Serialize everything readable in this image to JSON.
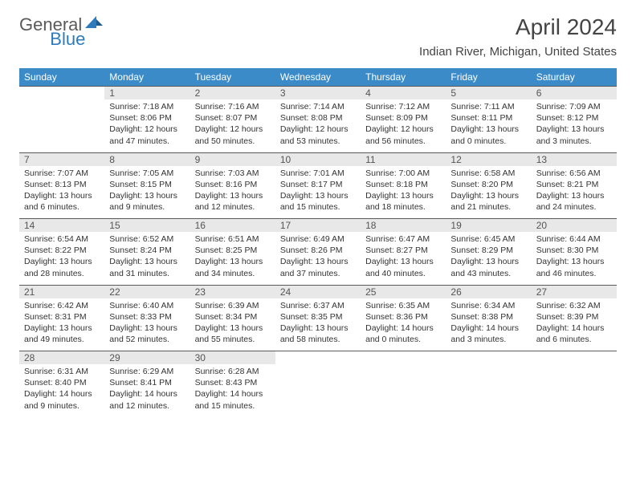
{
  "logo": {
    "general": "General",
    "blue": "Blue"
  },
  "title": "April 2024",
  "location": "Indian River, Michigan, United States",
  "colors": {
    "header_bg": "#3b8bc9",
    "daynum_bg": "#e8e8e8",
    "border": "#5a5a5a",
    "text": "#333333",
    "title_text": "#444444"
  },
  "weekdays": [
    "Sunday",
    "Monday",
    "Tuesday",
    "Wednesday",
    "Thursday",
    "Friday",
    "Saturday"
  ],
  "weeks": [
    {
      "nums": [
        "",
        "1",
        "2",
        "3",
        "4",
        "5",
        "6"
      ],
      "cells": [
        null,
        {
          "sr": "7:18 AM",
          "ss": "8:06 PM",
          "dl": "12 hours and 47 minutes."
        },
        {
          "sr": "7:16 AM",
          "ss": "8:07 PM",
          "dl": "12 hours and 50 minutes."
        },
        {
          "sr": "7:14 AM",
          "ss": "8:08 PM",
          "dl": "12 hours and 53 minutes."
        },
        {
          "sr": "7:12 AM",
          "ss": "8:09 PM",
          "dl": "12 hours and 56 minutes."
        },
        {
          "sr": "7:11 AM",
          "ss": "8:11 PM",
          "dl": "13 hours and 0 minutes."
        },
        {
          "sr": "7:09 AM",
          "ss": "8:12 PM",
          "dl": "13 hours and 3 minutes."
        }
      ]
    },
    {
      "nums": [
        "7",
        "8",
        "9",
        "10",
        "11",
        "12",
        "13"
      ],
      "cells": [
        {
          "sr": "7:07 AM",
          "ss": "8:13 PM",
          "dl": "13 hours and 6 minutes."
        },
        {
          "sr": "7:05 AM",
          "ss": "8:15 PM",
          "dl": "13 hours and 9 minutes."
        },
        {
          "sr": "7:03 AM",
          "ss": "8:16 PM",
          "dl": "13 hours and 12 minutes."
        },
        {
          "sr": "7:01 AM",
          "ss": "8:17 PM",
          "dl": "13 hours and 15 minutes."
        },
        {
          "sr": "7:00 AM",
          "ss": "8:18 PM",
          "dl": "13 hours and 18 minutes."
        },
        {
          "sr": "6:58 AM",
          "ss": "8:20 PM",
          "dl": "13 hours and 21 minutes."
        },
        {
          "sr": "6:56 AM",
          "ss": "8:21 PM",
          "dl": "13 hours and 24 minutes."
        }
      ]
    },
    {
      "nums": [
        "14",
        "15",
        "16",
        "17",
        "18",
        "19",
        "20"
      ],
      "cells": [
        {
          "sr": "6:54 AM",
          "ss": "8:22 PM",
          "dl": "13 hours and 28 minutes."
        },
        {
          "sr": "6:52 AM",
          "ss": "8:24 PM",
          "dl": "13 hours and 31 minutes."
        },
        {
          "sr": "6:51 AM",
          "ss": "8:25 PM",
          "dl": "13 hours and 34 minutes."
        },
        {
          "sr": "6:49 AM",
          "ss": "8:26 PM",
          "dl": "13 hours and 37 minutes."
        },
        {
          "sr": "6:47 AM",
          "ss": "8:27 PM",
          "dl": "13 hours and 40 minutes."
        },
        {
          "sr": "6:45 AM",
          "ss": "8:29 PM",
          "dl": "13 hours and 43 minutes."
        },
        {
          "sr": "6:44 AM",
          "ss": "8:30 PM",
          "dl": "13 hours and 46 minutes."
        }
      ]
    },
    {
      "nums": [
        "21",
        "22",
        "23",
        "24",
        "25",
        "26",
        "27"
      ],
      "cells": [
        {
          "sr": "6:42 AM",
          "ss": "8:31 PM",
          "dl": "13 hours and 49 minutes."
        },
        {
          "sr": "6:40 AM",
          "ss": "8:33 PM",
          "dl": "13 hours and 52 minutes."
        },
        {
          "sr": "6:39 AM",
          "ss": "8:34 PM",
          "dl": "13 hours and 55 minutes."
        },
        {
          "sr": "6:37 AM",
          "ss": "8:35 PM",
          "dl": "13 hours and 58 minutes."
        },
        {
          "sr": "6:35 AM",
          "ss": "8:36 PM",
          "dl": "14 hours and 0 minutes."
        },
        {
          "sr": "6:34 AM",
          "ss": "8:38 PM",
          "dl": "14 hours and 3 minutes."
        },
        {
          "sr": "6:32 AM",
          "ss": "8:39 PM",
          "dl": "14 hours and 6 minutes."
        }
      ]
    },
    {
      "nums": [
        "28",
        "29",
        "30",
        "",
        "",
        "",
        ""
      ],
      "cells": [
        {
          "sr": "6:31 AM",
          "ss": "8:40 PM",
          "dl": "14 hours and 9 minutes."
        },
        {
          "sr": "6:29 AM",
          "ss": "8:41 PM",
          "dl": "14 hours and 12 minutes."
        },
        {
          "sr": "6:28 AM",
          "ss": "8:43 PM",
          "dl": "14 hours and 15 minutes."
        },
        null,
        null,
        null,
        null
      ]
    }
  ],
  "labels": {
    "sunrise": "Sunrise:",
    "sunset": "Sunset:",
    "daylight": "Daylight:"
  }
}
